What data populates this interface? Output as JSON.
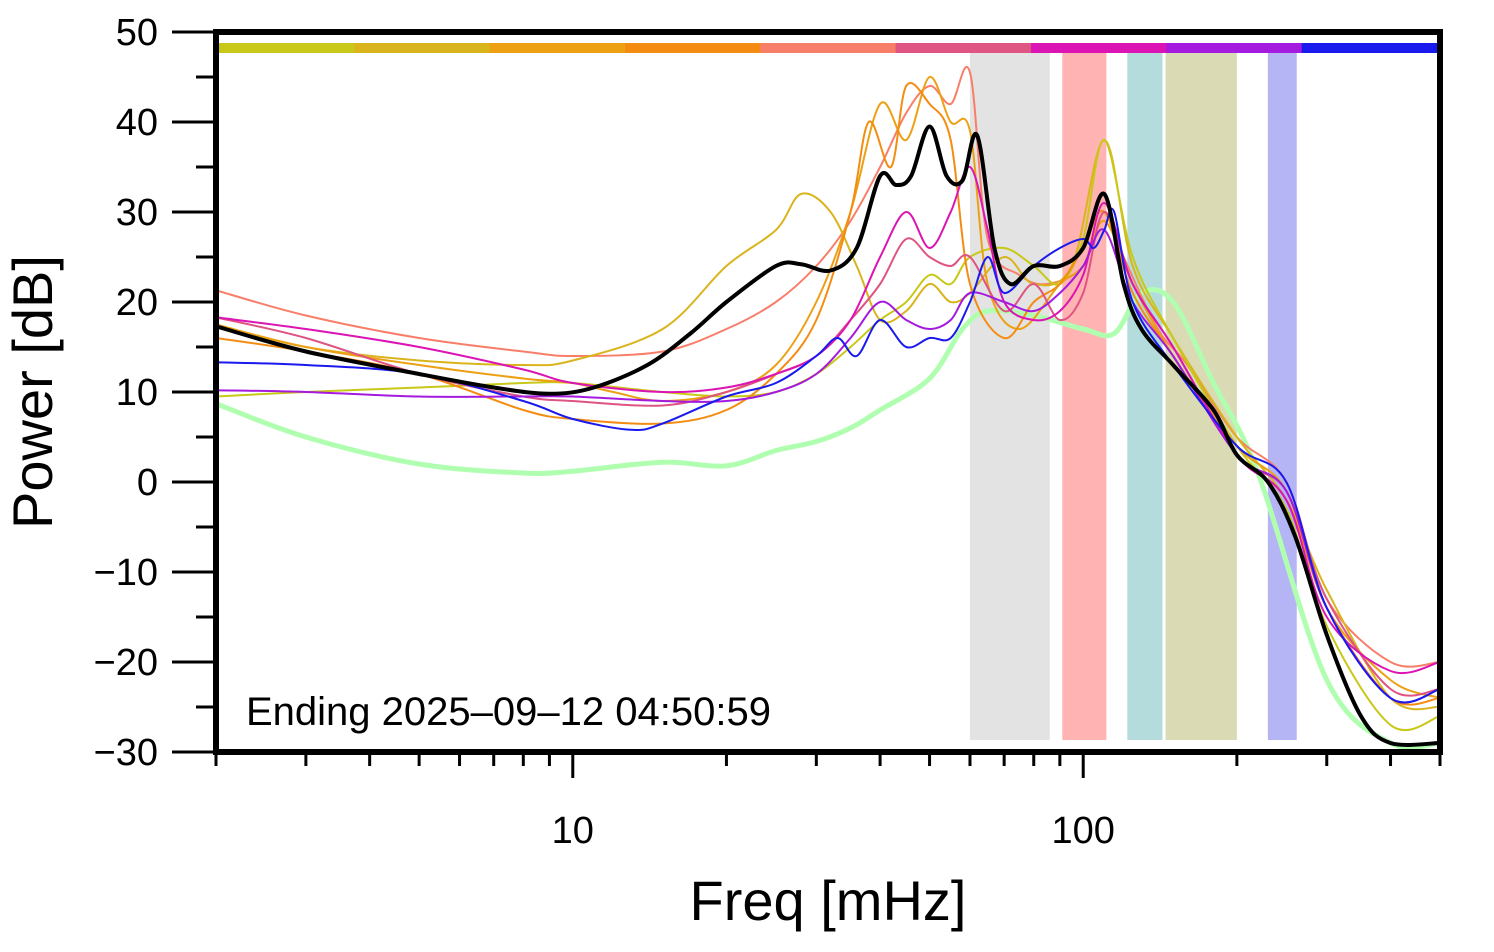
{
  "chart_data": {
    "type": "line",
    "title": "",
    "xlabel": "Freq [mHz]",
    "ylabel": "Power [dB]",
    "xscale": "log",
    "xlim": [
      2,
      500
    ],
    "ylim": [
      -30,
      50
    ],
    "grid": false,
    "annotation": "Ending 2025–09–12 04:50:59",
    "x_ticks": [
      {
        "value": 10,
        "label": "10"
      },
      {
        "value": 100,
        "label": "100"
      }
    ],
    "x_minor_ticks": [
      2,
      3,
      4,
      5,
      6,
      7,
      8,
      9,
      20,
      30,
      40,
      50,
      60,
      70,
      80,
      90,
      200,
      300,
      400,
      500
    ],
    "y_ticks": [
      {
        "value": -30,
        "label": "−30"
      },
      {
        "value": -20,
        "label": "−20"
      },
      {
        "value": -10,
        "label": "−10"
      },
      {
        "value": 0,
        "label": "0"
      },
      {
        "value": 10,
        "label": "10"
      },
      {
        "value": 20,
        "label": "20"
      },
      {
        "value": 30,
        "label": "30"
      },
      {
        "value": 40,
        "label": "40"
      },
      {
        "value": 50,
        "label": "50"
      }
    ],
    "y_minor_ticks": [
      -25,
      -15,
      -5,
      5,
      15,
      25,
      35,
      45
    ],
    "bands": [
      {
        "x0": 60,
        "x1": 86,
        "color": "#e3e3e3"
      },
      {
        "x0": 91,
        "x1": 111,
        "color": "#ffb3b3"
      },
      {
        "x0": 122,
        "x1": 143,
        "color": "#b5dcdd"
      },
      {
        "x0": 145,
        "x1": 200,
        "color": "#dadab5"
      },
      {
        "x0": 230,
        "x1": 262,
        "color": "#b5b5f5"
      }
    ],
    "top_color_bar": [
      "#c8c818",
      "#dab41c",
      "#eca014",
      "#f48c12",
      "#f87e6a",
      "#de5482",
      "#dc14b4",
      "#a41ade",
      "#1a1aee"
    ],
    "series": [
      {
        "role": "reference-low",
        "color": "#b0ffb0",
        "width": 5,
        "x": [
          2,
          3,
          5,
          8,
          10,
          15,
          20,
          25,
          30,
          35,
          40,
          50,
          58,
          65,
          80,
          100,
          115,
          130,
          150,
          180,
          220,
          300,
          400,
          500
        ],
        "y": [
          8.7,
          5,
          2,
          1,
          1.2,
          2.2,
          1.8,
          3.5,
          4.5,
          6,
          8,
          11.5,
          17,
          19,
          18.5,
          17,
          16.5,
          21,
          20,
          11,
          1,
          -22,
          -29,
          -29
        ]
      },
      {
        "color": "#f87e6a",
        "width": 2,
        "x": [
          2,
          3,
          5,
          8,
          10,
          15,
          20,
          25,
          30,
          35,
          40,
          45,
          50,
          55,
          60,
          65,
          75,
          85,
          100,
          110,
          120,
          140,
          160,
          200,
          250,
          300,
          400,
          500
        ],
        "y": [
          21.3,
          18.5,
          16,
          14.5,
          14,
          14.5,
          17,
          20,
          24,
          29,
          35,
          41,
          44,
          42,
          45.5,
          27,
          23,
          22,
          24,
          30,
          25,
          17,
          13,
          5,
          0,
          -13,
          -20,
          -20
        ]
      },
      {
        "color": "#dab41c",
        "width": 2,
        "x": [
          2,
          3,
          5,
          8,
          10,
          15,
          20,
          25,
          28,
          32,
          36,
          40,
          45,
          50,
          55,
          60,
          70,
          80,
          95,
          110,
          125,
          150,
          200,
          250,
          300,
          400,
          500
        ],
        "y": [
          17.5,
          15,
          13.5,
          13,
          13.5,
          17,
          24,
          28,
          32,
          30,
          24,
          18,
          19,
          22,
          20,
          21,
          25,
          22,
          24,
          38,
          24,
          16,
          5,
          -2,
          -12,
          -24,
          -25
        ]
      },
      {
        "color": "#c8c818",
        "width": 2,
        "x": [
          2,
          3,
          5,
          8,
          10,
          15,
          20,
          25,
          30,
          35,
          40,
          45,
          50,
          55,
          60,
          70,
          80,
          90,
          100,
          110,
          125,
          150,
          200,
          250,
          300,
          400,
          500
        ],
        "y": [
          9.5,
          10,
          10.5,
          11,
          11,
          10,
          9.5,
          10,
          12,
          15,
          18,
          20,
          23,
          22,
          25,
          26,
          24,
          22,
          27,
          38,
          25,
          16,
          4,
          -3,
          -16,
          -27,
          -26
        ]
      },
      {
        "color": "#eca014",
        "width": 2,
        "x": [
          2,
          3,
          5,
          8,
          10,
          12,
          15,
          20,
          25,
          30,
          35,
          40,
          45,
          50,
          55,
          60,
          65,
          75,
          90,
          100,
          110,
          125,
          150,
          200,
          250,
          300,
          400,
          500
        ],
        "y": [
          17.5,
          15,
          13,
          11.5,
          11,
          10,
          9,
          10,
          13,
          20,
          30,
          42,
          38,
          45,
          40,
          39,
          22,
          17,
          22,
          24,
          29,
          22,
          14,
          4,
          -1,
          -14,
          -22,
          -24
        ]
      },
      {
        "color": "#f48c12",
        "width": 2,
        "x": [
          2,
          3,
          5,
          8,
          10,
          15,
          20,
          25,
          30,
          35,
          38,
          42,
          45,
          50,
          55,
          60,
          70,
          80,
          90,
          100,
          110,
          125,
          150,
          200,
          250,
          300,
          400,
          500
        ],
        "y": [
          16,
          14.5,
          12,
          8,
          7,
          6.5,
          8,
          12,
          18,
          30,
          40,
          35,
          44,
          42,
          38,
          22,
          16,
          20,
          22,
          26,
          30,
          21,
          14,
          3,
          -2,
          -14,
          -24,
          -24
        ]
      },
      {
        "color": "#de5482",
        "width": 2,
        "x": [
          2,
          3,
          5,
          8,
          10,
          15,
          20,
          25,
          30,
          35,
          40,
          45,
          50,
          55,
          60,
          70,
          80,
          90,
          100,
          110,
          125,
          150,
          200,
          250,
          300,
          400,
          500
        ],
        "y": [
          18.3,
          16,
          12,
          9.5,
          9,
          8.5,
          10,
          12,
          14,
          18,
          22,
          27,
          25,
          24,
          25,
          19,
          22,
          18,
          21,
          30,
          22,
          15,
          3,
          -1,
          -13,
          -23,
          -23
        ]
      },
      {
        "color": "#dc14b4",
        "width": 2,
        "x": [
          2,
          3,
          5,
          8,
          10,
          15,
          20,
          25,
          30,
          35,
          40,
          45,
          50,
          55,
          60,
          65,
          70,
          80,
          90,
          100,
          110,
          125,
          150,
          200,
          250,
          300,
          400,
          500
        ],
        "y": [
          18.3,
          17,
          15,
          12.5,
          11,
          10,
          10.5,
          12,
          14,
          18,
          25,
          30,
          26,
          30,
          35,
          28,
          20,
          18,
          19,
          23,
          31,
          22,
          15,
          3,
          -2,
          -15,
          -21,
          -20
        ]
      },
      {
        "color": "#a41ade",
        "width": 2,
        "x": [
          2,
          3,
          5,
          8,
          10,
          15,
          20,
          25,
          30,
          35,
          40,
          45,
          50,
          55,
          60,
          70,
          80,
          90,
          100,
          110,
          125,
          150,
          200,
          250,
          300,
          400,
          500
        ],
        "y": [
          10.2,
          10,
          9.5,
          9.5,
          9.5,
          9,
          9,
          10,
          12,
          16,
          20,
          18,
          17,
          18,
          21,
          20,
          19,
          21,
          24,
          28,
          20,
          14,
          3,
          -1,
          -14,
          -24,
          -23
        ]
      },
      {
        "color": "#1a1aee",
        "width": 2,
        "x": [
          2,
          3,
          5,
          8,
          10,
          13,
          15,
          20,
          25,
          30,
          33,
          36,
          40,
          45,
          50,
          55,
          60,
          65,
          70,
          80,
          90,
          100,
          105,
          110,
          115,
          125,
          150,
          200,
          250,
          300,
          400,
          500
        ],
        "y": [
          13.3,
          13,
          12,
          9,
          7,
          5.8,
          6.5,
          9.5,
          11,
          14,
          16,
          14,
          18,
          15,
          16,
          16,
          20,
          25,
          21,
          24,
          26,
          27,
          26,
          28,
          30,
          20,
          13,
          4,
          0,
          -14,
          -24,
          -23
        ]
      },
      {
        "role": "mean",
        "color": "#000000",
        "width": 4,
        "x": [
          2,
          3,
          5,
          7,
          9,
          11,
          14,
          17,
          20,
          25,
          28,
          32,
          36,
          40,
          43,
          46,
          50,
          54,
          58,
          62,
          67,
          72,
          80,
          90,
          100,
          110,
          120,
          130,
          150,
          180,
          200,
          230,
          260,
          300,
          350,
          400,
          500
        ],
        "y": [
          17.3,
          14.5,
          12,
          10.5,
          9.8,
          10.5,
          13,
          16.5,
          20,
          24,
          24.2,
          23.5,
          26,
          34,
          33,
          34,
          39.5,
          34,
          33.5,
          38.5,
          26,
          22,
          24,
          24,
          26,
          32,
          22,
          17,
          13,
          8,
          3,
          0,
          -6,
          -17,
          -26,
          -29,
          -29
        ]
      }
    ]
  }
}
